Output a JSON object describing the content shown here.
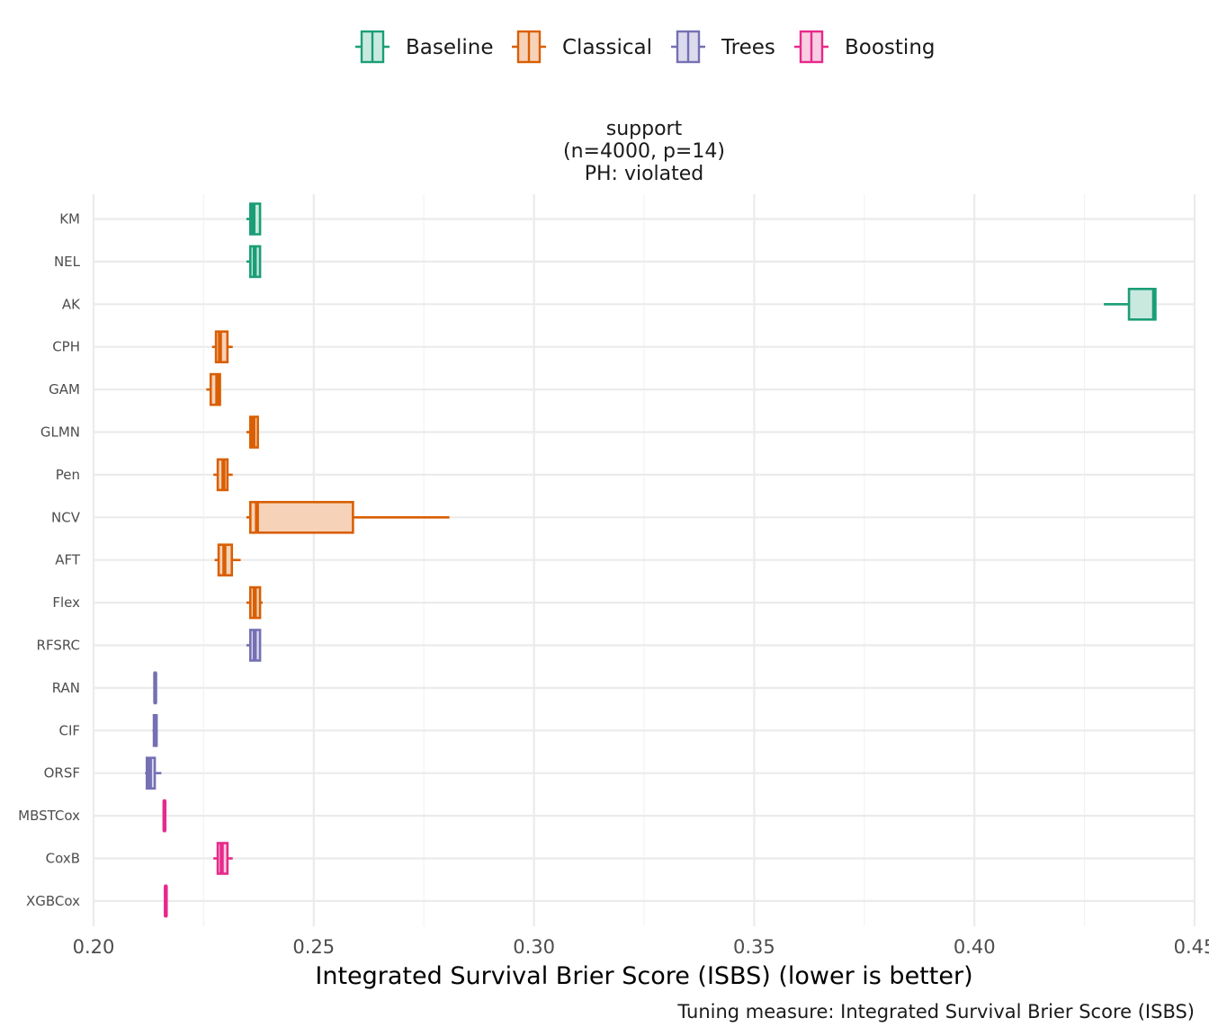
{
  "chart_data": {
    "type": "boxplot",
    "orientation": "horizontal",
    "facet_title": [
      "support",
      "(n=4000, p=14)",
      "PH: violated"
    ],
    "xlabel": "Integrated Survival Brier Score (ISBS) (lower is better)",
    "caption": "Tuning measure: Integrated Survival Brier Score (ISBS)",
    "xlim": [
      0.2,
      0.45
    ],
    "x_ticks": [
      0.2,
      0.25,
      0.3,
      0.35,
      0.4,
      0.45
    ],
    "x_tick_labels": [
      "0.20",
      "0.25",
      "0.30",
      "0.35",
      "0.40",
      "0.45"
    ],
    "grid": true,
    "legend_position": "top",
    "groups": [
      {
        "name": "Baseline",
        "color": "#1b9e77",
        "fill": "#c9e9df"
      },
      {
        "name": "Classical",
        "color": "#d95f02",
        "fill": "#f6d2b8"
      },
      {
        "name": "Trees",
        "color": "#7570b3",
        "fill": "#dcdbee"
      },
      {
        "name": "Boosting",
        "color": "#e7298a",
        "fill": "#f9cde2"
      }
    ],
    "categories": [
      "KM",
      "NEL",
      "AK",
      "CPH",
      "GAM",
      "GLMN",
      "Pen",
      "NCV",
      "AFT",
      "Flex",
      "RFSRC",
      "RAN",
      "CIF",
      "ORSF",
      "MBSTCox",
      "CoxB",
      "XGBCox"
    ],
    "boxes": [
      {
        "label": "KM",
        "group": "Baseline",
        "whisker_low": 0.2347,
        "q1": 0.2356,
        "median": 0.2363,
        "q3": 0.2378,
        "whisker_high": 0.2379
      },
      {
        "label": "NEL",
        "group": "Baseline",
        "whisker_low": 0.2347,
        "q1": 0.2356,
        "median": 0.2366,
        "q3": 0.2378,
        "whisker_high": 0.2379
      },
      {
        "label": "AK",
        "group": "Baseline",
        "whisker_low": 0.4294,
        "q1": 0.4351,
        "median": 0.4408,
        "q3": 0.4411,
        "whisker_high": 0.4412
      },
      {
        "label": "CPH",
        "group": "Classical",
        "whisker_low": 0.2269,
        "q1": 0.2278,
        "median": 0.2287,
        "q3": 0.2304,
        "whisker_high": 0.2316
      },
      {
        "label": "GAM",
        "group": "Classical",
        "whisker_low": 0.2256,
        "q1": 0.2266,
        "median": 0.2281,
        "q3": 0.2287,
        "whisker_high": 0.2288
      },
      {
        "label": "GLMN",
        "group": "Classical",
        "whisker_low": 0.2347,
        "q1": 0.2356,
        "median": 0.2363,
        "q3": 0.2373,
        "whisker_high": 0.2374
      },
      {
        "label": "Pen",
        "group": "Classical",
        "whisker_low": 0.2272,
        "q1": 0.2282,
        "median": 0.2295,
        "q3": 0.2304,
        "whisker_high": 0.2316
      },
      {
        "label": "NCV",
        "group": "Classical",
        "whisker_low": 0.2347,
        "q1": 0.2356,
        "median": 0.2371,
        "q3": 0.2589,
        "whisker_high": 0.2808
      },
      {
        "label": "AFT",
        "group": "Classical",
        "whisker_low": 0.2275,
        "q1": 0.2284,
        "median": 0.2297,
        "q3": 0.2314,
        "whisker_high": 0.2334
      },
      {
        "label": "Flex",
        "group": "Classical",
        "whisker_low": 0.2347,
        "q1": 0.2356,
        "median": 0.2366,
        "q3": 0.2378,
        "whisker_high": 0.2384
      },
      {
        "label": "RFSRC",
        "group": "Trees",
        "whisker_low": 0.2347,
        "q1": 0.2356,
        "median": 0.2366,
        "q3": 0.2378,
        "whisker_high": 0.2379
      },
      {
        "label": "RAN",
        "group": "Trees",
        "whisker_low": 0.2138,
        "q1": 0.2139,
        "median": 0.214,
        "q3": 0.2141,
        "whisker_high": 0.2142
      },
      {
        "label": "CIF",
        "group": "Trees",
        "whisker_low": 0.2134,
        "q1": 0.2137,
        "median": 0.2141,
        "q3": 0.2143,
        "whisker_high": 0.2144
      },
      {
        "label": "ORSF",
        "group": "Trees",
        "whisker_low": 0.2117,
        "q1": 0.2121,
        "median": 0.2128,
        "q3": 0.2139,
        "whisker_high": 0.2154
      },
      {
        "label": "MBSTCox",
        "group": "Boosting",
        "whisker_low": 0.2159,
        "q1": 0.216,
        "median": 0.2161,
        "q3": 0.2162,
        "whisker_high": 0.2163
      },
      {
        "label": "CoxB",
        "group": "Boosting",
        "whisker_low": 0.2272,
        "q1": 0.2282,
        "median": 0.2291,
        "q3": 0.2304,
        "whisker_high": 0.2316
      },
      {
        "label": "XGBCox",
        "group": "Boosting",
        "whisker_low": 0.2162,
        "q1": 0.2163,
        "median": 0.2164,
        "q3": 0.2165,
        "whisker_high": 0.2166
      }
    ]
  }
}
